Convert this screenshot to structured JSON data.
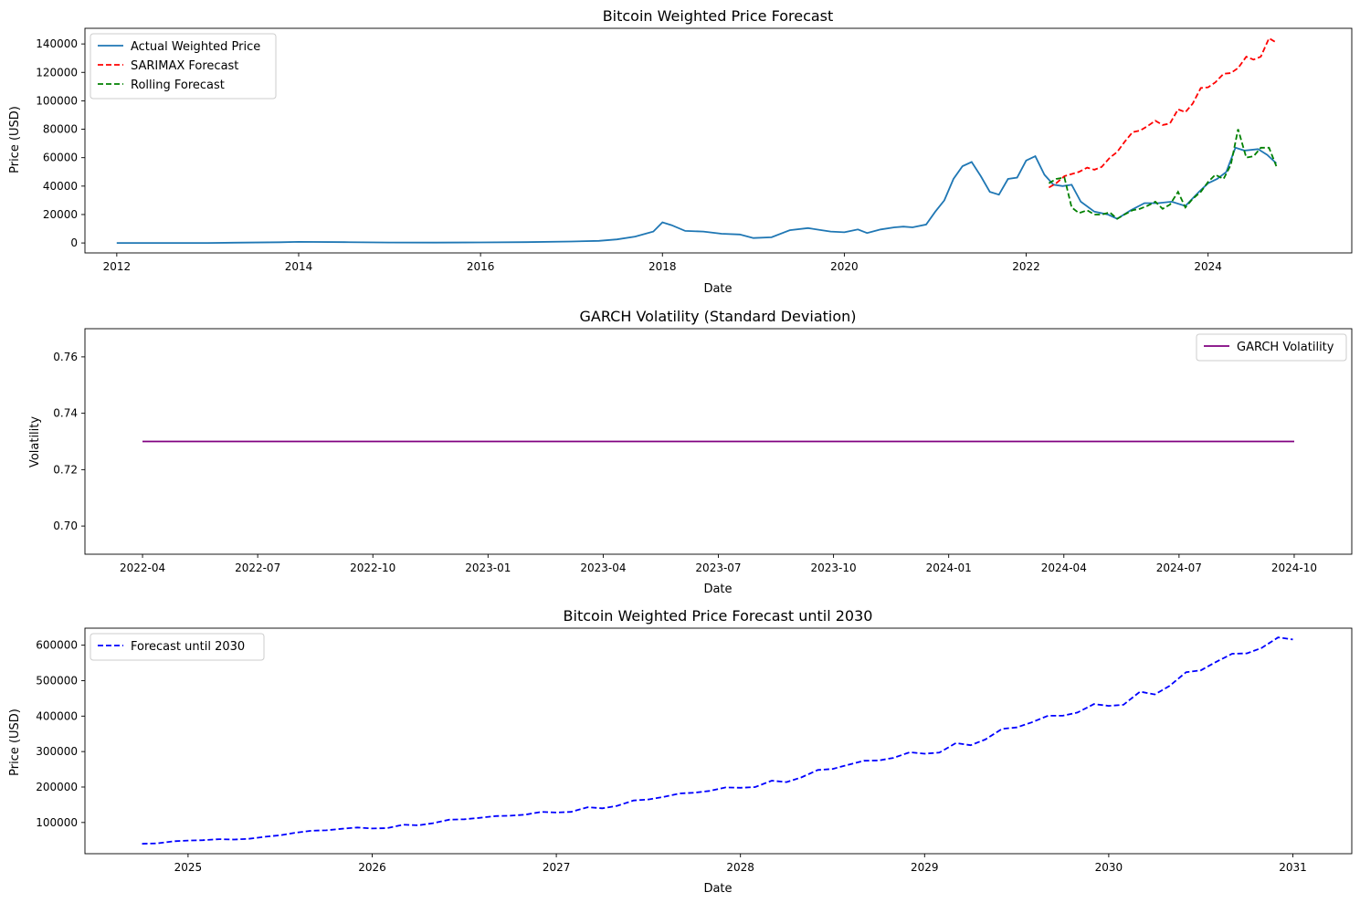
{
  "chart_data": [
    {
      "type": "line",
      "title": "Bitcoin Weighted Price Forecast",
      "xlabel": "Date",
      "ylabel": "Price (USD)",
      "x_ticks": [
        "2012",
        "2014",
        "2016",
        "2018",
        "2020",
        "2022",
        "2024"
      ],
      "y_ticks": [
        "0",
        "20000",
        "40000",
        "60000",
        "80000",
        "100000",
        "120000",
        "140000"
      ],
      "xlim": [
        2011.65,
        2025.58
      ],
      "ylim": [
        -7000,
        151000
      ],
      "legend": "top-left",
      "grid": false,
      "series": [
        {
          "name": "Actual Weighted Price",
          "color": "#1f77b4",
          "style": "solid",
          "x": [
            2012.0,
            2013.0,
            2013.8,
            2014.0,
            2014.5,
            2015.0,
            2015.5,
            2016.0,
            2016.5,
            2017.0,
            2017.3,
            2017.5,
            2017.7,
            2017.9,
            2018.0,
            2018.1,
            2018.25,
            2018.45,
            2018.65,
            2018.85,
            2019.0,
            2019.2,
            2019.4,
            2019.6,
            2019.75,
            2019.85,
            2020.0,
            2020.15,
            2020.25,
            2020.4,
            2020.55,
            2020.65,
            2020.75,
            2020.9,
            2021.0,
            2021.1,
            2021.2,
            2021.3,
            2021.4,
            2021.5,
            2021.6,
            2021.7,
            2021.8,
            2021.9,
            2022.0,
            2022.1,
            2022.2,
            2022.3,
            2022.4,
            2022.5,
            2022.6,
            2022.75,
            2022.9,
            2023.0,
            2023.15,
            2023.3,
            2023.45,
            2023.6,
            2023.75,
            2023.9,
            2024.0,
            2024.1,
            2024.2,
            2024.3,
            2024.4,
            2024.55,
            2024.65,
            2024.75
          ],
          "y": [
            0,
            0,
            500,
            800,
            600,
            300,
            250,
            400,
            600,
            1000,
            1500,
            2500,
            4500,
            8000,
            14500,
            12500,
            8500,
            8000,
            6500,
            6000,
            3500,
            4000,
            9000,
            10500,
            9000,
            8000,
            7500,
            9500,
            7000,
            9500,
            11000,
            11500,
            11000,
            13000,
            22000,
            30000,
            45000,
            54000,
            57000,
            47000,
            36000,
            34000,
            45000,
            46000,
            58000,
            61000,
            48000,
            41000,
            40000,
            41000,
            29000,
            22000,
            20000,
            17000,
            23000,
            28000,
            28000,
            29000,
            26000,
            36000,
            42000,
            45000,
            50000,
            67000,
            65000,
            66000,
            62000,
            56000
          ]
        },
        {
          "name": "SARIMAX Forecast",
          "color": "#ff0000",
          "style": "dashed",
          "x": [
            2022.25,
            2022.33,
            2022.42,
            2022.5,
            2022.58,
            2022.67,
            2022.75,
            2022.83,
            2022.92,
            2023.0,
            2023.08,
            2023.17,
            2023.25,
            2023.33,
            2023.42,
            2023.5,
            2023.58,
            2023.67,
            2023.75,
            2023.83,
            2023.92,
            2024.0,
            2024.08,
            2024.17,
            2024.25,
            2024.33,
            2024.42,
            2024.5,
            2024.58,
            2024.67,
            2024.75
          ],
          "y": [
            39000,
            42000,
            47000,
            48500,
            50000,
            53000,
            51500,
            53500,
            60000,
            64000,
            71000,
            78000,
            79000,
            82000,
            86000,
            83000,
            84000,
            94000,
            92000,
            98000,
            109000,
            109500,
            113000,
            119000,
            119500,
            123000,
            131000,
            129000,
            131000,
            144000,
            141000
          ]
        },
        {
          "name": "Rolling Forecast",
          "color": "#008000",
          "style": "dashed",
          "x": [
            2022.25,
            2022.33,
            2022.42,
            2022.5,
            2022.58,
            2022.67,
            2022.75,
            2022.83,
            2022.92,
            2023.0,
            2023.08,
            2023.17,
            2023.25,
            2023.33,
            2023.42,
            2023.5,
            2023.58,
            2023.67,
            2023.75,
            2023.83,
            2023.92,
            2024.0,
            2024.08,
            2024.17,
            2024.25,
            2024.33,
            2024.42,
            2024.5,
            2024.58,
            2024.67,
            2024.75
          ],
          "y": [
            42000,
            45000,
            46000,
            25000,
            21000,
            23000,
            20000,
            20000,
            21500,
            17000,
            20000,
            23000,
            24000,
            26000,
            29000,
            24000,
            27000,
            36000,
            25000,
            31000,
            36000,
            43000,
            48000,
            45000,
            55000,
            80000,
            60000,
            61000,
            67000,
            67000,
            54000
          ]
        }
      ]
    },
    {
      "type": "line",
      "title": "GARCH Volatility (Standard Deviation)",
      "xlabel": "Date",
      "ylabel": "Volatility",
      "x_ticks": [
        "2022-04",
        "2022-07",
        "2022-10",
        "2023-01",
        "2023-04",
        "2023-07",
        "2023-10",
        "2024-01",
        "2024-04",
        "2024-07",
        "2024-10"
      ],
      "y_ticks": [
        "0.70",
        "0.72",
        "0.74",
        "0.76"
      ],
      "xlim": [
        -1.5,
        31.5
      ],
      "ylim": [
        0.69,
        0.77
      ],
      "legend": "top-right",
      "grid": false,
      "series": [
        {
          "name": "GARCH Volatility",
          "color": "#800080",
          "style": "solid",
          "x": [
            0,
            30
          ],
          "y": [
            0.73,
            0.73
          ]
        }
      ]
    },
    {
      "type": "line",
      "title": "Bitcoin Weighted Price Forecast until 2030",
      "xlabel": "Date",
      "ylabel": "Price (USD)",
      "x_ticks": [
        "2025",
        "2026",
        "2027",
        "2028",
        "2029",
        "2030",
        "2031"
      ],
      "y_ticks": [
        "100000",
        "200000",
        "300000",
        "400000",
        "500000",
        "600000"
      ],
      "xlim": [
        2024.44,
        2031.32
      ],
      "ylim": [
        12000,
        648000
      ],
      "legend": "top-left",
      "grid": false,
      "series": [
        {
          "name": "Forecast until 2030",
          "color": "#0000ff",
          "style": "dashed",
          "x": [
            2024.75,
            2024.83,
            2024.92,
            2025.0,
            2025.08,
            2025.17,
            2025.25,
            2025.33,
            2025.42,
            2025.5,
            2025.58,
            2025.67,
            2025.75,
            2025.83,
            2025.92,
            2026.0,
            2026.08,
            2026.17,
            2026.25,
            2026.33,
            2026.42,
            2026.5,
            2026.58,
            2026.67,
            2026.75,
            2026.83,
            2026.92,
            2027.0,
            2027.08,
            2027.17,
            2027.25,
            2027.33,
            2027.42,
            2027.5,
            2027.58,
            2027.67,
            2027.75,
            2027.83,
            2027.92,
            2028.0,
            2028.08,
            2028.17,
            2028.25,
            2028.33,
            2028.42,
            2028.5,
            2028.58,
            2028.67,
            2028.75,
            2028.83,
            2028.92,
            2029.0,
            2029.08,
            2029.17,
            2029.25,
            2029.33,
            2029.42,
            2029.5,
            2029.58,
            2029.67,
            2029.75,
            2029.83,
            2029.92,
            2030.0,
            2030.08,
            2030.17,
            2030.25,
            2030.33,
            2030.42,
            2030.5,
            2030.58,
            2030.67,
            2030.75,
            2030.83,
            2030.92,
            2031.0
          ],
          "y": [
            40000,
            41000,
            47000,
            49000,
            50000,
            53000,
            52000,
            54000,
            60000,
            64000,
            71000,
            77000,
            78000,
            82000,
            86000,
            83000,
            84000,
            94000,
            92000,
            98000,
            108000,
            109000,
            113000,
            118000,
            119000,
            122000,
            130000,
            128000,
            130000,
            143000,
            140000,
            147000,
            162000,
            165000,
            172000,
            182000,
            184000,
            189000,
            199000,
            198000,
            200000,
            218000,
            214000,
            227000,
            248000,
            251000,
            262000,
            274000,
            275000,
            282000,
            298000,
            294000,
            297000,
            324000,
            318000,
            334000,
            364000,
            368000,
            382000,
            401000,
            401000,
            410000,
            434000,
            429000,
            432000,
            469000,
            461000,
            485000,
            524000,
            529000,
            552000,
            576000,
            577000,
            592000,
            622000,
            616000
          ]
        }
      ]
    }
  ]
}
